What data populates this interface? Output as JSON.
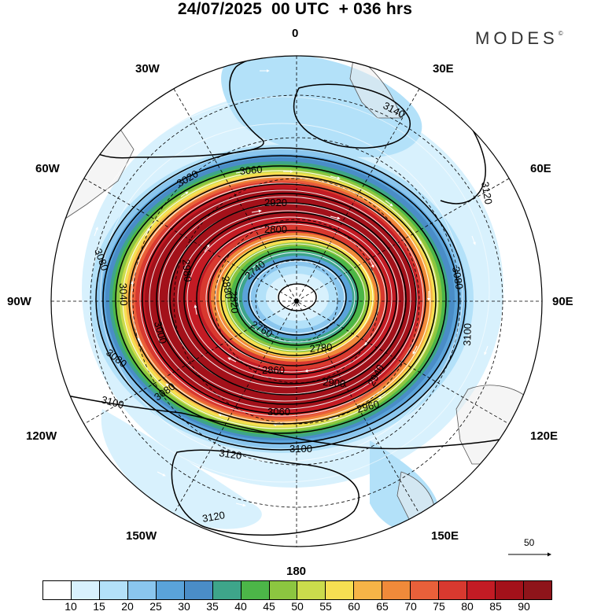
{
  "title": "24/07/2025  00 UTC  + 036 hrs",
  "brand": "MODES",
  "brand_mark": "©",
  "longitude_labels": {
    "top": "0",
    "bottom": "180",
    "left": "90W",
    "right": "90E",
    "upper_left_outer": "60W",
    "upper_left_inner": "30W",
    "upper_right_inner": "30E",
    "upper_right_outer": "60E",
    "lower_left_outer": "120W",
    "lower_left_inner": "150W",
    "lower_right_inner": "150E",
    "lower_right_outer": "120E"
  },
  "contour_labels": {
    "c3140": "3140",
    "c3120_a": "3120",
    "c3120_b": "3120",
    "c3120_c": "3120",
    "c3100_a": "3100",
    "c3100_b": "3100",
    "c3100_c": "3100",
    "c3080_a": "3080",
    "c3080_b": "3080",
    "c3080_c": "3080",
    "c3080_d": "3080",
    "c3060_a": "3060",
    "c3060_b": "3060",
    "c3040_a": "3040",
    "c3020_a": "3020",
    "c3000_a": "3000",
    "c2980_a": "2980",
    "c2960_a": "2960",
    "c2940_a": "2940",
    "c2920_a": "2920",
    "c2900_a": "2900",
    "c2880_a": "2880",
    "c2860_a": "2860",
    "c2820_a": "2820",
    "c2800_a": "2800",
    "c2780_a": "2780",
    "c2760_a": "2760",
    "c2740_a": "2740"
  },
  "reference_vector_label": "50",
  "colorbar": {
    "colors": [
      "#ffffff",
      "#d8f1fd",
      "#b3e1f9",
      "#8ac6ee",
      "#5aa3da",
      "#4a8dc7",
      "#3ea58a",
      "#4cb648",
      "#8cc640",
      "#cbdc4c",
      "#f6df52",
      "#f6b447",
      "#f08a3a",
      "#e9603a",
      "#d8392f",
      "#c31b24",
      "#a3111a",
      "#8e141a"
    ],
    "tick_labels": [
      "10",
      "15",
      "20",
      "25",
      "30",
      "35",
      "40",
      "45",
      "50",
      "55",
      "60",
      "65",
      "70",
      "75",
      "80",
      "85",
      "90"
    ]
  }
}
